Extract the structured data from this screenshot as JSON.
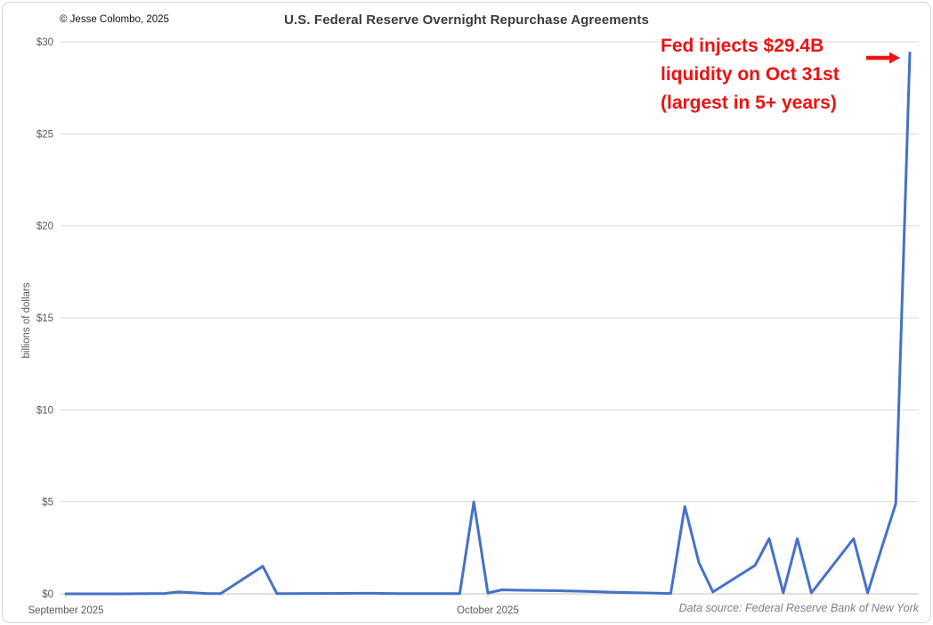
{
  "page": {
    "copyright": "© Jesse Colombo, 2025",
    "title": "U.S. Federal Reserve Overnight Repurchase Agreements",
    "data_source": "Data source: Federal Reserve Bank of New York"
  },
  "annotation": {
    "line1": "Fed injects $29.4B",
    "line2": "liquidity on Oct 31st",
    "line3": "(largest in 5+ years)",
    "color": "#ee1111",
    "arrow_icon": "right-arrow"
  },
  "chart_data": {
    "type": "line",
    "title": "U.S. Federal Reserve Overnight Repurchase Agreements",
    "xlabel": "",
    "ylabel": "billions of dollars",
    "ylim": [
      0,
      30
    ],
    "x_start": "2025-09-01",
    "x_end": "2025-10-31",
    "grid": "horizontal-only",
    "legend": "none",
    "line_color": "#4472C4",
    "gridline_color": "#d9d9d9",
    "axis_line_color": "#bfbfbf",
    "tick_label_color": "#595959",
    "y_ticks": [
      {
        "value": 0,
        "label": "$0"
      },
      {
        "value": 5,
        "label": "$5"
      },
      {
        "value": 10,
        "label": "$10"
      },
      {
        "value": 15,
        "label": "$15"
      },
      {
        "value": 20,
        "label": "$20"
      },
      {
        "value": 25,
        "label": "$25"
      },
      {
        "value": 30,
        "label": "$30"
      }
    ],
    "x_ticks": [
      {
        "date": "2025-09-01",
        "label": "September 2025"
      },
      {
        "date": "2025-10-01",
        "label": "October 2025"
      }
    ],
    "series": [
      {
        "name": "Overnight repurchase agreements (billions of dollars)",
        "points": [
          [
            "2025-09-01",
            0
          ],
          [
            "2025-09-02",
            0
          ],
          [
            "2025-09-03",
            0
          ],
          [
            "2025-09-04",
            0
          ],
          [
            "2025-09-05",
            0
          ],
          [
            "2025-09-08",
            0.02
          ],
          [
            "2025-09-09",
            0.1
          ],
          [
            "2025-09-10",
            0.06
          ],
          [
            "2025-09-11",
            0.02
          ],
          [
            "2025-09-12",
            0.01
          ],
          [
            "2025-09-15",
            1.5
          ],
          [
            "2025-09-16",
            0.01
          ],
          [
            "2025-09-17",
            0.01
          ],
          [
            "2025-09-18",
            0.02
          ],
          [
            "2025-09-19",
            0.02
          ],
          [
            "2025-09-22",
            0.03
          ],
          [
            "2025-09-23",
            0.03
          ],
          [
            "2025-09-24",
            0.02
          ],
          [
            "2025-09-25",
            0.01
          ],
          [
            "2025-09-26",
            0.01
          ],
          [
            "2025-09-29",
            0.01
          ],
          [
            "2025-09-30",
            5.0
          ],
          [
            "2025-10-01",
            0.05
          ],
          [
            "2025-10-02",
            0.22
          ],
          [
            "2025-10-03",
            0.2
          ],
          [
            "2025-10-06",
            0.17
          ],
          [
            "2025-10-07",
            0.15
          ],
          [
            "2025-10-08",
            0.13
          ],
          [
            "2025-10-09",
            0.11
          ],
          [
            "2025-10-10",
            0.08
          ],
          [
            "2025-10-13",
            0.04
          ],
          [
            "2025-10-14",
            0.02
          ],
          [
            "2025-10-15",
            4.75
          ],
          [
            "2025-10-16",
            1.7
          ],
          [
            "2025-10-17",
            0.1
          ],
          [
            "2025-10-20",
            1.55
          ],
          [
            "2025-10-21",
            3.0
          ],
          [
            "2025-10-22",
            0.05
          ],
          [
            "2025-10-23",
            3.0
          ],
          [
            "2025-10-24",
            0.05
          ],
          [
            "2025-10-27",
            3.0
          ],
          [
            "2025-10-28",
            0.05
          ],
          [
            "2025-10-29",
            2.5
          ],
          [
            "2025-10-30",
            4.9
          ],
          [
            "2025-10-31",
            29.4
          ]
        ]
      }
    ]
  }
}
